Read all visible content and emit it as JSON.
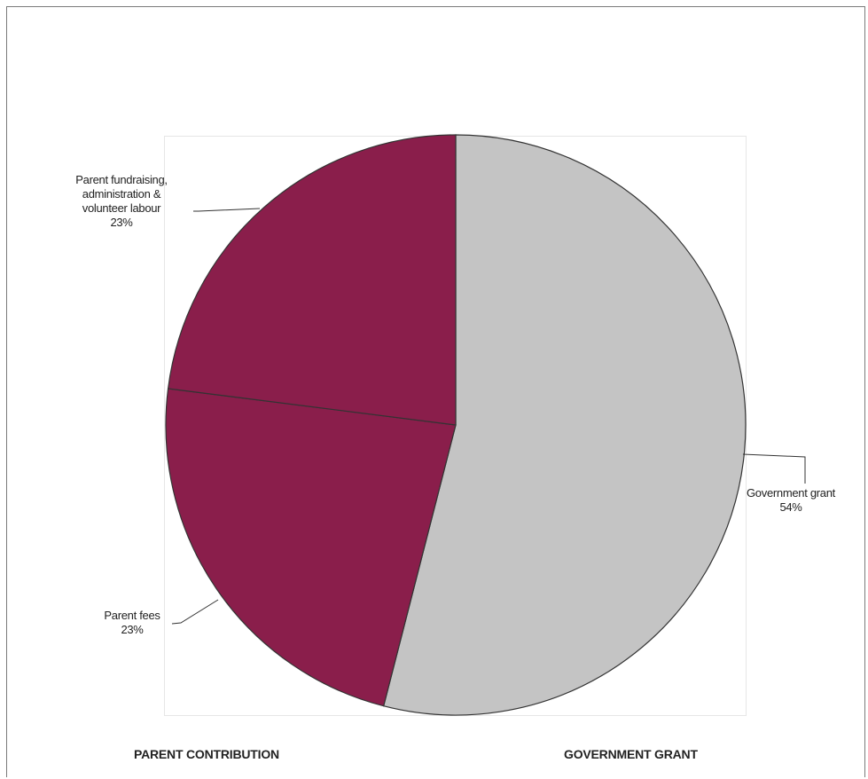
{
  "chart_data": {
    "type": "pie",
    "start_angle_deg": 0,
    "direction": "clockwise",
    "slices": [
      {
        "label_lines": [
          "Government grant",
          "54%"
        ],
        "value": 54,
        "color": "#c4c4c4"
      },
      {
        "label_lines": [
          "Parent fees",
          "23%"
        ],
        "value": 23,
        "color": "#8a1e4b"
      },
      {
        "label_lines": [
          "Parent fundraising,",
          "administration &",
          "volunteer labour",
          "23%"
        ],
        "value": 23,
        "color": "#8a1e4b"
      }
    ],
    "outline_color": "#333333"
  },
  "footer": {
    "left_label": "PARENT CONTRIBUTION",
    "right_label": "GOVERNMENT GRANT"
  }
}
